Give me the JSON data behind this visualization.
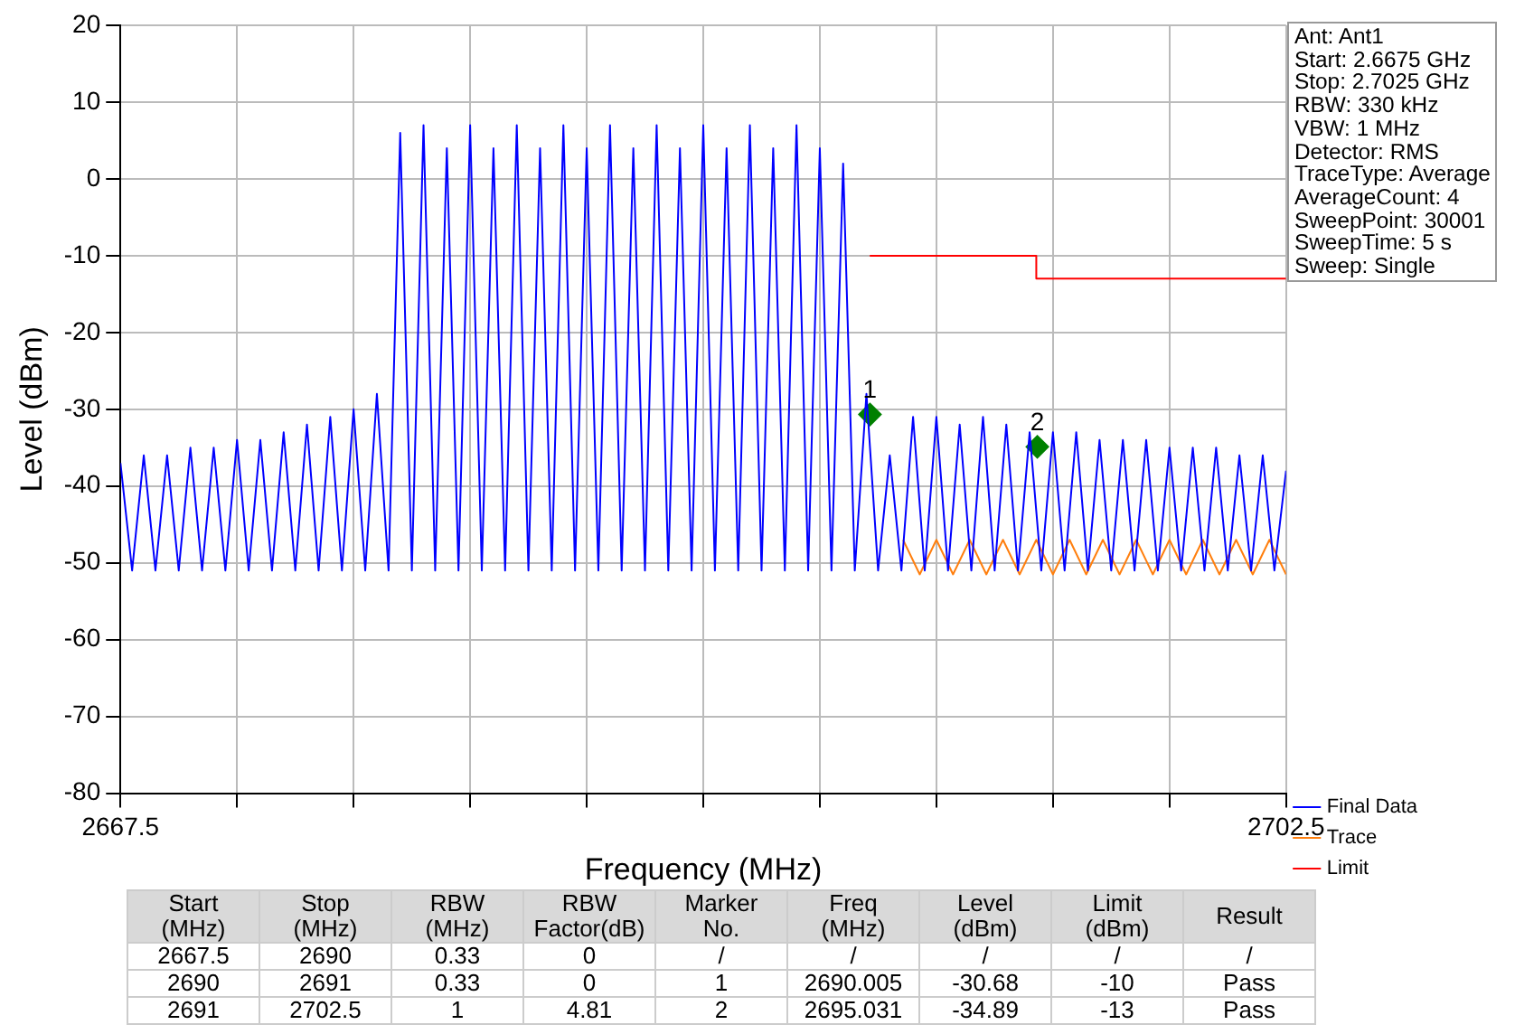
{
  "chart_data": [
    {
      "type": "line",
      "xlabel": "Frequency (MHz)",
      "ylabel": "Level (dBm)",
      "xlim": [
        2667.5,
        2702.5
      ],
      "ylim": [
        -80,
        20
      ],
      "xticks": [
        {
          "value": 2667.5,
          "label": "2667.5"
        },
        {
          "value": 2671,
          "label": null
        },
        {
          "value": 2674.5,
          "label": null
        },
        {
          "value": 2678,
          "label": null
        },
        {
          "value": 2681.5,
          "label": null
        },
        {
          "value": 2685,
          "label": null
        },
        {
          "value": 2688.5,
          "label": null
        },
        {
          "value": 2692,
          "label": null
        },
        {
          "value": 2695.5,
          "label": null
        },
        {
          "value": 2699,
          "label": null
        },
        {
          "value": 2702.5,
          "label": "2702.5"
        }
      ],
      "yticks": [
        -80,
        -70,
        -60,
        -50,
        -40,
        -30,
        -20,
        -10,
        0,
        10,
        20
      ],
      "grid": true,
      "legend": "bottom right",
      "annotations": [
        "Ant: Ant1",
        "Start: 2.6675 GHz",
        "Stop: 2.7025 GHz",
        "RBW: 330 kHz",
        "VBW: 1 MHz",
        "Detector: RMS",
        "TraceType: Average",
        "AverageCount: 4",
        "SweepPoint: 30001",
        "SweepTime: 5 s",
        "Sweep: Single",
        {
          "text": "1",
          "x": 2690.005,
          "y": -30.68
        },
        {
          "text": "2",
          "x": 2695.031,
          "y": -34.89
        }
      ],
      "series": [
        {
          "name": "Final Data",
          "type": "line",
          "color": "#0000ff",
          "x": [
            2667.5,
            2667.85,
            2668.2,
            2668.55,
            2668.9,
            2669.25,
            2669.6,
            2669.95,
            2670.3,
            2670.65,
            2671.0,
            2671.35,
            2671.7,
            2672.05,
            2672.4,
            2672.75,
            2673.1,
            2673.45,
            2673.8,
            2674.15,
            2674.5,
            2674.85,
            2675.2,
            2675.55,
            2675.9,
            2676.25,
            2676.6,
            2676.95,
            2677.3,
            2677.65,
            2678.0,
            2678.35,
            2678.7,
            2679.05,
            2679.4,
            2679.75,
            2680.1,
            2680.45,
            2680.8,
            2681.15,
            2681.5,
            2681.85,
            2682.2,
            2682.55,
            2682.9,
            2683.25,
            2683.6,
            2683.95,
            2684.3,
            2684.65,
            2685.0,
            2685.35,
            2685.7,
            2686.05,
            2686.4,
            2686.75,
            2687.1,
            2687.45,
            2687.8,
            2688.15,
            2688.5,
            2688.85,
            2689.2,
            2689.55,
            2689.9,
            2690.25,
            2690.6,
            2690.95,
            2691.3,
            2691.65,
            2692.0,
            2692.35,
            2692.7,
            2693.05,
            2693.4,
            2693.75,
            2694.1,
            2694.45,
            2694.8,
            2695.15,
            2695.5,
            2695.85,
            2696.2,
            2696.55,
            2696.9,
            2697.25,
            2697.6,
            2697.95,
            2698.3,
            2698.65,
            2699.0,
            2699.35,
            2699.7,
            2700.05,
            2700.4,
            2700.75,
            2701.1,
            2701.45,
            2701.8,
            2702.15,
            2702.5
          ],
          "values": [
            -37,
            -51,
            -36,
            -51,
            -36,
            -51,
            -35,
            -51,
            -35,
            -51,
            -34,
            -51,
            -34,
            -51,
            -33,
            -51,
            -32,
            -51,
            -31,
            -51,
            -30,
            -51,
            -28,
            -51,
            6,
            -51,
            7,
            -51,
            4,
            -51,
            7,
            -51,
            4,
            -51,
            7,
            -51,
            4,
            -51,
            7,
            -51,
            4,
            -51,
            7,
            -51,
            4,
            -51,
            7,
            -51,
            4,
            -51,
            7,
            -51,
            4,
            -51,
            7,
            -51,
            4,
            -51,
            7,
            -51,
            4,
            -51,
            2,
            -51,
            -28,
            -51,
            -36,
            -51,
            -31,
            -51,
            -31,
            -51,
            -32,
            -51,
            -31,
            -51,
            -32,
            -51,
            -33,
            -51,
            -33,
            -51,
            -33,
            -51,
            -34,
            -51,
            -34,
            -51,
            -34,
            -51,
            -35,
            -51,
            -35,
            -51,
            -35,
            -51,
            -36,
            -51,
            -36,
            -51,
            -38
          ]
        },
        {
          "name": "Trace",
          "type": "line",
          "color": "#ff7f0e",
          "x": [
            2691,
            2691.5,
            2692,
            2692.5,
            2693,
            2693.5,
            2694,
            2694.5,
            2695,
            2695.5,
            2696,
            2696.5,
            2697,
            2697.5,
            2698,
            2698.5,
            2699,
            2699.5,
            2700,
            2700.5,
            2701,
            2701.5,
            2702,
            2702.5
          ],
          "values": [
            -47,
            -51.5,
            -47,
            -51.5,
            -47,
            -51.5,
            -47,
            -51.5,
            -47,
            -51.5,
            -47,
            -51.5,
            -47,
            -51.5,
            -47,
            -51.5,
            -47,
            -51.5,
            -47,
            -51.5,
            -47,
            -51.5,
            -47,
            -51.5
          ]
        },
        {
          "name": "Limit",
          "type": "line",
          "color": "#ff0000",
          "x": [
            2690,
            2695,
            2695,
            2702.5
          ],
          "values": [
            -10,
            -10,
            -13,
            -13
          ]
        },
        {
          "type": "scatter",
          "marker": "diamond",
          "color": "#008000",
          "x": [
            2690.005,
            2695.031
          ],
          "values": [
            -30.68,
            -34.89
          ]
        }
      ]
    },
    {
      "type": "other",
      "annotations": [
        "Start (MHz)",
        "Stop (MHz)",
        "RBW (MHz)",
        "RBW Factor(dB)",
        "Marker No.",
        "Freq (MHz)",
        "Level (dBm)",
        "Limit (dBm)",
        "Result",
        "2667.5",
        "2690",
        "0.33",
        "0",
        "/",
        "/",
        "/",
        "/",
        "/",
        "2690",
        "2691",
        "0.33",
        "0",
        "1",
        "2690.005",
        "-30.68",
        "-10",
        "Pass",
        "2691",
        "2702.5",
        "1",
        "4.81",
        "2",
        "2695.031",
        "-34.89",
        "-13",
        "Pass"
      ]
    }
  ]
}
